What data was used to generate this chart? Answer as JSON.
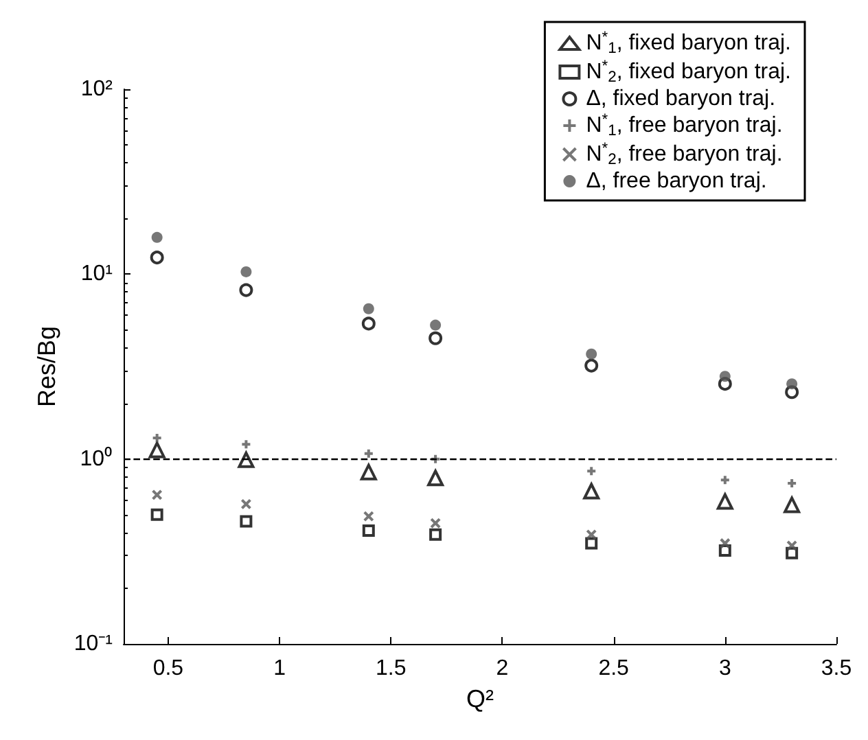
{
  "chart_data": {
    "type": "scatter",
    "xlabel": "Q²",
    "ylabel": "Res/Bg",
    "x": [
      0.45,
      0.85,
      1.4,
      1.7,
      2.4,
      3.0,
      3.3
    ],
    "series": [
      {
        "name": "N$^{*}$$_{1}$, fixed baryon traj.",
        "color": "#000000",
        "marker": "triangle",
        "values": [
          1.12,
          0.99,
          0.85,
          0.79,
          0.67,
          0.59,
          0.565
        ]
      },
      {
        "name": "N$^{*}$$_{2}$, fixed baryon traj.",
        "color": "#000000",
        "marker": "square",
        "values": [
          0.5,
          0.46,
          0.41,
          0.39,
          0.35,
          0.32,
          0.31
        ]
      },
      {
        "name": "Δ, fixed baryon traj.",
        "color": "#000000",
        "marker": "circle",
        "values": [
          12.3,
          8.2,
          5.4,
          4.5,
          3.2,
          2.55,
          2.3
        ]
      },
      {
        "name": "N$^{*}$$_{1}$, free baryon traj.",
        "color": "#555555",
        "marker": "cross",
        "values": [
          1.3,
          1.2,
          1.07,
          1.0,
          0.86,
          0.77,
          0.74
        ]
      },
      {
        "name": "N$^{*}$$_{2}$, free baryon traj.",
        "color": "#555555",
        "marker": "x",
        "values": [
          0.64,
          0.57,
          0.49,
          0.45,
          0.39,
          0.35,
          0.34
        ]
      },
      {
        "name": "Δ, free baryon traj.",
        "color": "#555555",
        "marker": "circle",
        "values": [
          15.8,
          10.3,
          6.5,
          5.3,
          3.7,
          2.8,
          2.55
        ]
      }
    ],
    "xlim": [
      0.3,
      3.5
    ],
    "xticks": [
      0.5,
      1,
      1.5,
      2,
      2.5,
      3,
      3.5
    ],
    "ylim": [
      0.1,
      100
    ],
    "log": "y",
    "yticks": [
      {
        "value": 0.1,
        "label": "10⁻¹"
      },
      {
        "value": 1,
        "label": "10⁰"
      },
      {
        "value": 10,
        "label": "10¹"
      },
      {
        "value": 100,
        "label": "10²"
      }
    ],
    "ref_lines": [
      {
        "axis": "y",
        "value": 1,
        "label": null,
        "color": "#000000",
        "line_style": "dashed"
      }
    ],
    "grid": false,
    "legend": "top right"
  }
}
